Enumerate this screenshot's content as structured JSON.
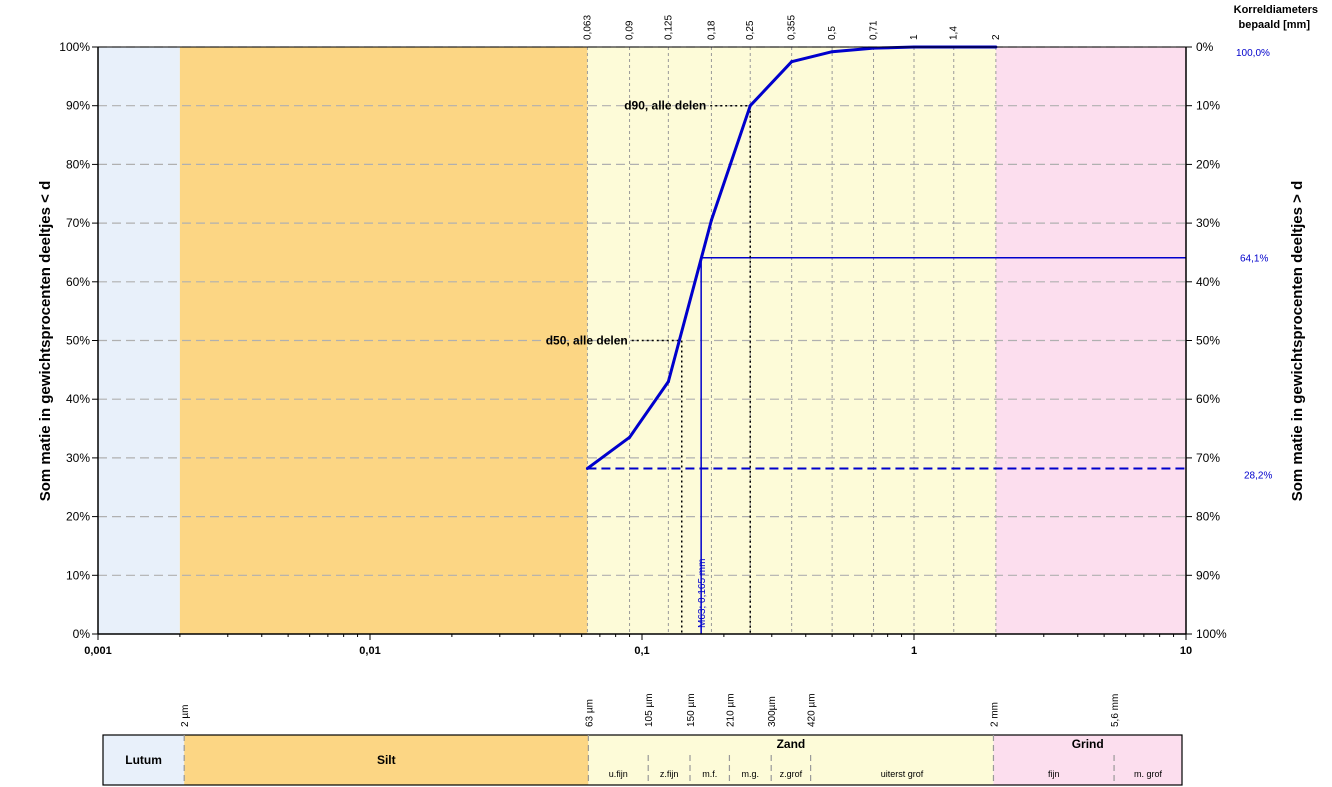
{
  "chart_data": {
    "type": "line",
    "x_scale": "log",
    "xlim": [
      0.001,
      10
    ],
    "ylim": [
      0,
      100
    ],
    "x_tick_labels": [
      "0,001",
      "0,01",
      "0,1",
      "1",
      "10"
    ],
    "y_left_label": "Som matie in gewichtsprocenten deeltjes < d",
    "y_right_label": "Som matie in gewichtsprocenten deeltjes > d",
    "y_left_ticks": [
      "0%",
      "10%",
      "20%",
      "30%",
      "40%",
      "50%",
      "60%",
      "70%",
      "80%",
      "90%",
      "100%"
    ],
    "y_right_ticks": [
      "100%",
      "90%",
      "80%",
      "70%",
      "60%",
      "50%",
      "40%",
      "30%",
      "20%",
      "10%",
      "0%"
    ],
    "top_title_line1": "Korreldiameters",
    "top_title_line2": "bepaald [mm]",
    "sieve_labels": [
      "0,063",
      "0,09",
      "0,125",
      "0,18",
      "0,25",
      "0,355",
      "0,5",
      "0,71",
      "1",
      "1,4",
      "2"
    ],
    "sieve_values": [
      0.063,
      0.09,
      0.125,
      0.18,
      0.25,
      0.355,
      0.5,
      0.71,
      1,
      1.4,
      2
    ],
    "series": [
      {
        "x": [
          0.063,
          0.09,
          0.125,
          0.18,
          0.25,
          0.355,
          0.5,
          0.71,
          1,
          1.4,
          2
        ],
        "y": [
          28.2,
          33.5,
          43.0,
          70.5,
          90.0,
          97.5,
          99.2,
          99.8,
          100,
          100,
          100
        ],
        "color": "#0000cc"
      }
    ],
    "zones": [
      {
        "from": 0.001,
        "to": 0.002,
        "color": "#e8f0fa"
      },
      {
        "from": 0.002,
        "to": 0.063,
        "color": "#fcd684"
      },
      {
        "from": 0.063,
        "to": 2,
        "color": "#fdfbd8"
      },
      {
        "from": 2,
        "to": 10,
        "color": "#fcdeee"
      }
    ],
    "annotations": {
      "d90_label": "d90, alle delen",
      "d90_x": 0.25,
      "d50_label": "d50, alle delen",
      "d50_x": 0.14,
      "m63_label": "M63; 0,165  mm",
      "m63_x": 0.165,
      "level_high": 64.1,
      "level_high_label": "64,1%",
      "level_low": 28.2,
      "level_low_label": "28,2%",
      "level_top_label": "100,0%"
    }
  },
  "classification": {
    "size_labels": [
      {
        "text": "2 µm",
        "x": 0.002
      },
      {
        "text": "63 µm",
        "x": 0.063
      },
      {
        "text": "105 µm",
        "x": 0.105
      },
      {
        "text": "150 µm",
        "x": 0.15
      },
      {
        "text": "210 µm",
        "x": 0.21
      },
      {
        "text": "300µm",
        "x": 0.3
      },
      {
        "text": "420 µm",
        "x": 0.42
      },
      {
        "text": "2 mm",
        "x": 2
      },
      {
        "text": "5,6 mm",
        "x": 5.6
      }
    ],
    "groups": [
      {
        "label": "Lutum",
        "from": 0.001,
        "to": 0.002,
        "color": "#e8f0fa"
      },
      {
        "label": "Silt",
        "from": 0.002,
        "to": 0.063,
        "color": "#fcd684"
      },
      {
        "label": "Zand",
        "from": 0.063,
        "to": 2,
        "color": "#fdfbd8"
      },
      {
        "label": "Grind",
        "from": 2,
        "to": 10,
        "color": "#fcdeee"
      }
    ],
    "subgroups": [
      {
        "label": "u.fijn",
        "from": 0.063,
        "to": 0.105
      },
      {
        "label": "z.fijn",
        "from": 0.105,
        "to": 0.15
      },
      {
        "label": "m.f.",
        "from": 0.15,
        "to": 0.21
      },
      {
        "label": "m.g.",
        "from": 0.21,
        "to": 0.3
      },
      {
        "label": "z.grof",
        "from": 0.3,
        "to": 0.42
      },
      {
        "label": "uiterst grof",
        "from": 0.42,
        "to": 2
      },
      {
        "label": "fijn",
        "from": 2,
        "to": 5.6
      },
      {
        "label": "m. grof",
        "from": 5.6,
        "to": 10
      }
    ]
  },
  "colors": {
    "line": "#0000cc",
    "grid": "#b0b0b0",
    "sieve_grid": "#999999"
  }
}
